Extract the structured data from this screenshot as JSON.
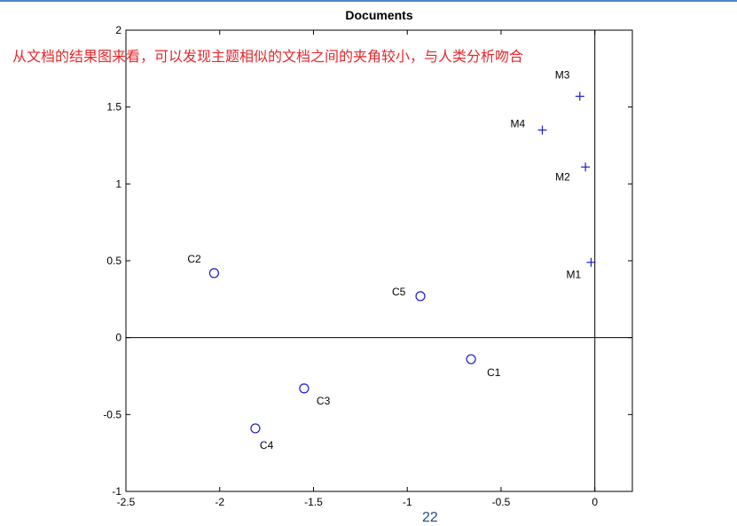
{
  "annotation": "从文档的结果图来看，可以发现主题相似的文档之间的夹角较小，与人类分析吻合",
  "page_number": "22",
  "colors": {
    "marker": "#1a1ad6",
    "annotation": "#e8262b",
    "axis": "#000000",
    "top_bar": "#4f86c6"
  },
  "chart_data": {
    "type": "scatter",
    "title": "Documents",
    "xlabel": "",
    "ylabel": "",
    "xlim": [
      -2.5,
      0.2
    ],
    "ylim": [
      -1,
      2
    ],
    "xticks": [
      -2.5,
      -2,
      -1.5,
      -1,
      -0.5,
      0
    ],
    "xtick_labels": [
      "-2.5",
      "-2",
      "-1.5",
      "-1",
      "-0.5",
      "0"
    ],
    "yticks": [
      -1,
      -0.5,
      0,
      0.5,
      1,
      1.5,
      2
    ],
    "ytick_labels": [
      "-1",
      "-0.5",
      "0",
      "0.5",
      "1",
      "1.5",
      "2"
    ],
    "grid": false,
    "reference_lines": {
      "x": 0,
      "y": 0
    },
    "series": [
      {
        "marker": "circle",
        "points": [
          {
            "label": "C1",
            "x": -0.66,
            "y": -0.14
          },
          {
            "label": "C2",
            "x": -2.03,
            "y": 0.42
          },
          {
            "label": "C3",
            "x": -1.55,
            "y": -0.33
          },
          {
            "label": "C4",
            "x": -1.81,
            "y": -0.59
          },
          {
            "label": "C5",
            "x": -0.93,
            "y": 0.27
          }
        ]
      },
      {
        "marker": "plus",
        "points": [
          {
            "label": "M1",
            "x": -0.02,
            "y": 0.49
          },
          {
            "label": "M2",
            "x": -0.05,
            "y": 1.11
          },
          {
            "label": "M3",
            "x": -0.08,
            "y": 1.57
          },
          {
            "label": "M4",
            "x": -0.28,
            "y": 1.35
          }
        ]
      }
    ]
  }
}
